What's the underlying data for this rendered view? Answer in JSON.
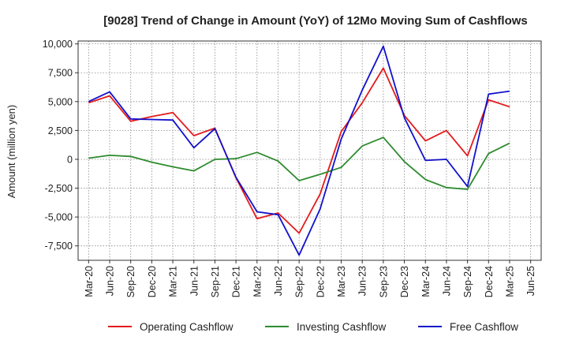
{
  "chart_data": {
    "type": "line",
    "title": "[9028]  Trend of Change in Amount (YoY) of 12Mo Moving Sum of Cashflows",
    "xlabel": "",
    "ylabel": "Amount (million yen)",
    "ylim": [
      -8750,
      10250
    ],
    "yticks": [
      10000,
      7500,
      5000,
      2500,
      0,
      -2500,
      -5000,
      -7500
    ],
    "ytick_labels": [
      "10,000",
      "7,500",
      "5,000",
      "2,500",
      "0",
      "-2,500",
      "-5,000",
      "-7,500"
    ],
    "categories": [
      "Mar-20",
      "Jun-20",
      "Sep-20",
      "Dec-20",
      "Mar-21",
      "Jun-21",
      "Sep-21",
      "Dec-21",
      "Mar-22",
      "Jun-22",
      "Sep-22",
      "Dec-22",
      "Mar-23",
      "Jun-23",
      "Sep-23",
      "Dec-23",
      "Mar-24",
      "Jun-24",
      "Sep-24",
      "Dec-24",
      "Mar-25",
      "Jun-25"
    ],
    "grid": true,
    "legend_position": "bottom",
    "series": [
      {
        "name": "Operating Cashflow",
        "color": "#e41a1c",
        "values": [
          4900,
          5500,
          3300,
          3700,
          4050,
          2050,
          2700,
          -1600,
          -5150,
          -4650,
          -6400,
          -3000,
          2400,
          4900,
          7900,
          3800,
          1600,
          2500,
          300,
          5150,
          4550,
          null
        ]
      },
      {
        "name": "Investing Cashflow",
        "color": "#2e8b2e",
        "values": [
          100,
          350,
          250,
          -250,
          -650,
          -1000,
          0,
          50,
          600,
          -150,
          -1850,
          -1300,
          -700,
          1150,
          1900,
          -200,
          -1750,
          -2450,
          -2600,
          500,
          1400,
          null
        ]
      },
      {
        "name": "Free Cashflow",
        "color": "#1111cc",
        "values": [
          5000,
          5850,
          3500,
          3450,
          3400,
          1000,
          2650,
          -1550,
          -4550,
          -4800,
          -8300,
          -4300,
          1750,
          6000,
          9800,
          3600,
          -100,
          0,
          -2350,
          5650,
          5900,
          null
        ]
      }
    ]
  }
}
